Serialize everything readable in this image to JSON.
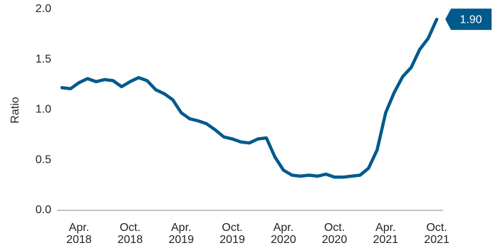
{
  "chart_data": {
    "type": "line",
    "y_label": "Ratio",
    "categories": [
      "Feb 2018",
      "Mar 2018",
      "Apr. 2018",
      "May 2018",
      "Jun 2018",
      "Jul 2018",
      "Aug 2018",
      "Sep 2018",
      "Oct. 2018",
      "Nov 2018",
      "Dec 2018",
      "Jan 2019",
      "Feb 2019",
      "Mar 2019",
      "Apr. 2019",
      "May 2019",
      "Jun 2019",
      "Jul 2019",
      "Aug 2019",
      "Sep 2019",
      "Oct. 2019",
      "Nov 2019",
      "Dec 2019",
      "Jan 2020",
      "Feb 2020",
      "Mar 2020",
      "Apr. 2020",
      "May 2020",
      "Jun 2020",
      "Jul 2020",
      "Aug 2020",
      "Sep 2020",
      "Oct. 2020",
      "Nov 2020",
      "Dec 2020",
      "Jan 2021",
      "Feb 2021",
      "Mar 2021",
      "Apr. 2021",
      "May 2021",
      "Jun 2021",
      "Jul 2021",
      "Aug 2021",
      "Sep 2021",
      "Oct. 2021"
    ],
    "shown_labels": [
      2,
      8,
      14,
      20,
      26,
      32,
      38,
      44
    ],
    "values": [
      1.22,
      1.21,
      1.27,
      1.31,
      1.28,
      1.3,
      1.29,
      1.23,
      1.28,
      1.32,
      1.29,
      1.2,
      1.16,
      1.1,
      0.97,
      0.91,
      0.89,
      0.86,
      0.8,
      0.73,
      0.71,
      0.68,
      0.67,
      0.71,
      0.72,
      0.53,
      0.4,
      0.35,
      0.34,
      0.35,
      0.34,
      0.36,
      0.33,
      0.33,
      0.34,
      0.35,
      0.42,
      0.6,
      0.97,
      1.17,
      1.33,
      1.42,
      1.6,
      1.71,
      1.9
    ],
    "value_labels": [
      null,
      null,
      null,
      null,
      null,
      null,
      null,
      null,
      null,
      null,
      null,
      null,
      null,
      null,
      null,
      null,
      null,
      null,
      null,
      null,
      null,
      null,
      null,
      null,
      null,
      null,
      null,
      null,
      null,
      null,
      null,
      null,
      null,
      null,
      null,
      null,
      null,
      null,
      null,
      null,
      null,
      null,
      null,
      null,
      "1.90"
    ],
    "color": "#005a8b",
    "ylim": [
      0,
      2.0
    ],
    "yticks": [
      {
        "value": 0,
        "label": "0.0"
      },
      {
        "value": 0.5,
        "label": "0.5"
      },
      {
        "value": 1.0,
        "label": "1.0"
      },
      {
        "value": 1.5,
        "label": "1.5"
      },
      {
        "value": 2.0,
        "label": "2.0"
      }
    ]
  }
}
